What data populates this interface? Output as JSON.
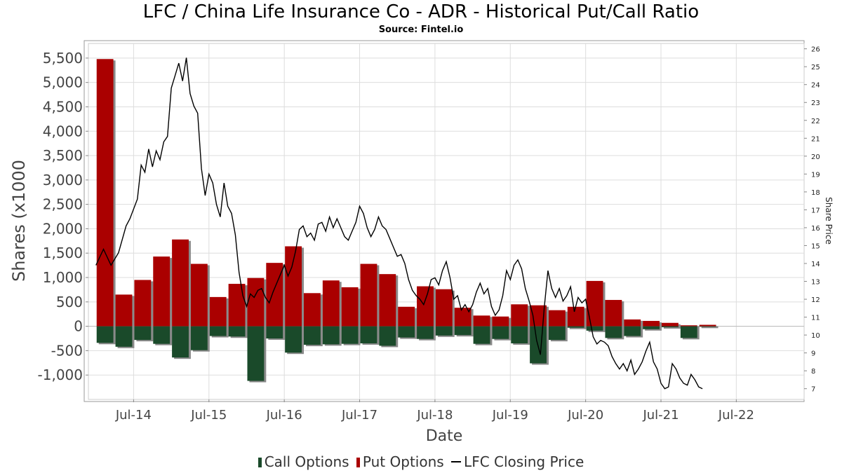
{
  "chart_data": {
    "type": "bar",
    "title": "LFC / China Life Insurance Co - ADR - Historical Put/Call Ratio",
    "subtitle": "Source: Fintel.io",
    "xlabel": "Date",
    "ylabel": "Shares (x1000",
    "y2label": "Share Price",
    "ylim": [
      -1500,
      5800
    ],
    "y2lim": [
      6.4,
      26.3
    ],
    "yticks": [
      "5,500",
      "5,000",
      "4,500",
      "4,000",
      "3,500",
      "3,000",
      "2,500",
      "2,000",
      "1,500",
      "1,000",
      "500",
      "0",
      "-500",
      "-1,000"
    ],
    "ytick_values": [
      5500,
      5000,
      4500,
      4000,
      3500,
      3000,
      2500,
      2000,
      1500,
      1000,
      500,
      0,
      -500,
      -1000
    ],
    "y2ticks": [
      "26",
      "25",
      "24",
      "23",
      "22",
      "21",
      "20",
      "19",
      "18",
      "17",
      "16",
      "15",
      "14",
      "13",
      "12",
      "11",
      "10",
      "9",
      "8",
      "7"
    ],
    "xlim": [
      2013.9,
      2023.4
    ],
    "xticks": [
      {
        "label": "Jul-14",
        "x": 2014.5
      },
      {
        "label": "Jul-15",
        "x": 2015.5
      },
      {
        "label": "Jul-16",
        "x": 2016.5
      },
      {
        "label": "Jul-17",
        "x": 2017.5
      },
      {
        "label": "Jul-18",
        "x": 2018.5
      },
      {
        "label": "Jul-19",
        "x": 2019.5
      },
      {
        "label": "Jul-20",
        "x": 2020.5
      },
      {
        "label": "Jul-21",
        "x": 2021.5
      },
      {
        "label": "Jul-22",
        "x": 2022.5
      }
    ],
    "grid": true,
    "legend_position": "bottom",
    "periods": [
      {
        "start": 2014.0,
        "put": 5480,
        "call": -340
      },
      {
        "start": 2014.25,
        "put": 650,
        "call": -420
      },
      {
        "start": 2014.5,
        "put": 950,
        "call": -280
      },
      {
        "start": 2014.75,
        "put": 1430,
        "call": -360
      },
      {
        "start": 2015.0,
        "put": 1780,
        "call": -640
      },
      {
        "start": 2015.25,
        "put": 1280,
        "call": -490
      },
      {
        "start": 2015.5,
        "put": 600,
        "call": -200
      },
      {
        "start": 2015.75,
        "put": 870,
        "call": -210
      },
      {
        "start": 2016.0,
        "put": 990,
        "call": -1120
      },
      {
        "start": 2016.25,
        "put": 1300,
        "call": -250
      },
      {
        "start": 2016.5,
        "put": 1640,
        "call": -540
      },
      {
        "start": 2016.75,
        "put": 680,
        "call": -380
      },
      {
        "start": 2017.0,
        "put": 940,
        "call": -370
      },
      {
        "start": 2017.25,
        "put": 800,
        "call": -360
      },
      {
        "start": 2017.5,
        "put": 1280,
        "call": -350
      },
      {
        "start": 2017.75,
        "put": 1070,
        "call": -400
      },
      {
        "start": 2018.0,
        "put": 400,
        "call": -230
      },
      {
        "start": 2018.25,
        "put": 820,
        "call": -260
      },
      {
        "start": 2018.5,
        "put": 760,
        "call": -190
      },
      {
        "start": 2018.75,
        "put": 380,
        "call": -180
      },
      {
        "start": 2019.0,
        "put": 220,
        "call": -360
      },
      {
        "start": 2019.25,
        "put": 200,
        "call": -260
      },
      {
        "start": 2019.5,
        "put": 450,
        "call": -350
      },
      {
        "start": 2019.75,
        "put": 430,
        "call": -760
      },
      {
        "start": 2020.0,
        "put": 330,
        "call": -280
      },
      {
        "start": 2020.25,
        "put": 400,
        "call": -30
      },
      {
        "start": 2020.5,
        "put": 930,
        "call": -90
      },
      {
        "start": 2020.75,
        "put": 540,
        "call": -240
      },
      {
        "start": 2021.0,
        "put": 140,
        "call": -200
      },
      {
        "start": 2021.25,
        "put": 110,
        "call": -60
      },
      {
        "start": 2021.5,
        "put": 70,
        "call": -20
      },
      {
        "start": 2021.75,
        "put": 20,
        "call": -240
      },
      {
        "start": 2022.0,
        "put": 30,
        "call": -10
      }
    ],
    "price": [
      [
        2014.0,
        13.9
      ],
      [
        2014.1,
        14.8
      ],
      [
        2014.2,
        13.9
      ],
      [
        2014.3,
        14.6
      ],
      [
        2014.4,
        16.1
      ],
      [
        2014.45,
        16.5
      ],
      [
        2014.55,
        17.6
      ],
      [
        2014.6,
        19.5
      ],
      [
        2014.65,
        19.1
      ],
      [
        2014.7,
        20.4
      ],
      [
        2014.75,
        19.4
      ],
      [
        2014.8,
        20.3
      ],
      [
        2014.85,
        19.8
      ],
      [
        2014.9,
        20.8
      ],
      [
        2014.95,
        21.1
      ],
      [
        2015.0,
        23.8
      ],
      [
        2015.05,
        24.5
      ],
      [
        2015.1,
        25.2
      ],
      [
        2015.15,
        24.2
      ],
      [
        2015.2,
        25.5
      ],
      [
        2015.25,
        23.5
      ],
      [
        2015.3,
        22.8
      ],
      [
        2015.35,
        22.4
      ],
      [
        2015.4,
        19.3
      ],
      [
        2015.45,
        17.8
      ],
      [
        2015.5,
        19.0
      ],
      [
        2015.55,
        18.5
      ],
      [
        2015.6,
        17.3
      ],
      [
        2015.65,
        16.6
      ],
      [
        2015.7,
        18.5
      ],
      [
        2015.75,
        17.2
      ],
      [
        2015.8,
        16.8
      ],
      [
        2015.85,
        15.6
      ],
      [
        2015.9,
        13.5
      ],
      [
        2015.95,
        12.2
      ],
      [
        2016.0,
        11.6
      ],
      [
        2016.05,
        12.3
      ],
      [
        2016.1,
        12.1
      ],
      [
        2016.15,
        12.5
      ],
      [
        2016.2,
        12.6
      ],
      [
        2016.25,
        12.1
      ],
      [
        2016.3,
        11.8
      ],
      [
        2016.35,
        12.4
      ],
      [
        2016.4,
        12.9
      ],
      [
        2016.45,
        13.4
      ],
      [
        2016.5,
        13.9
      ],
      [
        2016.55,
        13.3
      ],
      [
        2016.6,
        13.8
      ],
      [
        2016.65,
        14.7
      ],
      [
        2016.7,
        15.9
      ],
      [
        2016.75,
        16.1
      ],
      [
        2016.8,
        15.5
      ],
      [
        2016.85,
        15.7
      ],
      [
        2016.9,
        15.3
      ],
      [
        2016.95,
        16.2
      ],
      [
        2017.0,
        16.3
      ],
      [
        2017.05,
        15.8
      ],
      [
        2017.1,
        16.6
      ],
      [
        2017.15,
        16.0
      ],
      [
        2017.2,
        16.5
      ],
      [
        2017.25,
        16.0
      ],
      [
        2017.3,
        15.5
      ],
      [
        2017.35,
        15.3
      ],
      [
        2017.4,
        15.8
      ],
      [
        2017.45,
        16.3
      ],
      [
        2017.5,
        17.2
      ],
      [
        2017.55,
        16.8
      ],
      [
        2017.6,
        16.0
      ],
      [
        2017.65,
        15.5
      ],
      [
        2017.7,
        15.9
      ],
      [
        2017.75,
        16.6
      ],
      [
        2017.8,
        16.1
      ],
      [
        2017.85,
        15.9
      ],
      [
        2017.9,
        15.4
      ],
      [
        2017.95,
        14.9
      ],
      [
        2018.0,
        14.4
      ],
      [
        2018.05,
        14.5
      ],
      [
        2018.1,
        14.0
      ],
      [
        2018.15,
        13.1
      ],
      [
        2018.2,
        12.5
      ],
      [
        2018.25,
        12.2
      ],
      [
        2018.3,
        12.0
      ],
      [
        2018.35,
        11.7
      ],
      [
        2018.4,
        12.3
      ],
      [
        2018.45,
        13.1
      ],
      [
        2018.5,
        13.2
      ],
      [
        2018.55,
        12.8
      ],
      [
        2018.6,
        13.6
      ],
      [
        2018.65,
        14.1
      ],
      [
        2018.7,
        13.2
      ],
      [
        2018.75,
        12.0
      ],
      [
        2018.8,
        12.2
      ],
      [
        2018.85,
        11.4
      ],
      [
        2018.9,
        11.7
      ],
      [
        2018.95,
        11.3
      ],
      [
        2019.0,
        11.7
      ],
      [
        2019.05,
        12.4
      ],
      [
        2019.1,
        12.9
      ],
      [
        2019.15,
        12.3
      ],
      [
        2019.2,
        12.6
      ],
      [
        2019.25,
        11.6
      ],
      [
        2019.3,
        11.1
      ],
      [
        2019.35,
        11.4
      ],
      [
        2019.4,
        12.2
      ],
      [
        2019.45,
        13.6
      ],
      [
        2019.5,
        13.1
      ],
      [
        2019.55,
        13.9
      ],
      [
        2019.6,
        14.2
      ],
      [
        2019.65,
        13.7
      ],
      [
        2019.7,
        12.6
      ],
      [
        2019.75,
        11.9
      ],
      [
        2019.8,
        11.1
      ],
      [
        2019.85,
        9.7
      ],
      [
        2019.9,
        8.9
      ],
      [
        2019.95,
        11.5
      ],
      [
        2020.0,
        13.6
      ],
      [
        2020.05,
        12.6
      ],
      [
        2020.1,
        12.1
      ],
      [
        2020.15,
        12.6
      ],
      [
        2020.2,
        11.9
      ],
      [
        2020.25,
        12.2
      ],
      [
        2020.3,
        12.7
      ],
      [
        2020.35,
        11.3
      ],
      [
        2020.4,
        12.1
      ],
      [
        2020.45,
        11.8
      ],
      [
        2020.5,
        12.0
      ],
      [
        2020.55,
        11.0
      ],
      [
        2020.6,
        9.9
      ],
      [
        2020.65,
        9.5
      ],
      [
        2020.7,
        9.7
      ],
      [
        2020.75,
        9.6
      ],
      [
        2020.8,
        9.4
      ],
      [
        2020.85,
        8.8
      ],
      [
        2020.9,
        8.4
      ],
      [
        2020.95,
        8.1
      ],
      [
        2021.0,
        8.4
      ],
      [
        2021.05,
        8.0
      ],
      [
        2021.1,
        8.6
      ],
      [
        2021.15,
        7.8
      ],
      [
        2021.2,
        8.1
      ],
      [
        2021.25,
        8.5
      ],
      [
        2021.3,
        9.1
      ],
      [
        2021.35,
        9.6
      ],
      [
        2021.4,
        8.5
      ],
      [
        2021.45,
        8.1
      ],
      [
        2021.5,
        7.3
      ],
      [
        2021.55,
        7.0
      ],
      [
        2021.6,
        7.1
      ],
      [
        2021.65,
        8.4
      ],
      [
        2021.7,
        8.1
      ],
      [
        2021.75,
        7.6
      ],
      [
        2021.8,
        7.3
      ],
      [
        2021.85,
        7.2
      ],
      [
        2021.9,
        7.8
      ],
      [
        2021.95,
        7.5
      ],
      [
        2022.0,
        7.1
      ],
      [
        2022.05,
        7.0
      ]
    ],
    "legend": [
      {
        "label": "Call Options",
        "color": "#1a4a2a"
      },
      {
        "label": "Put Options",
        "color": "#aa0000"
      },
      {
        "label": "LFC Closing Price",
        "color": "#000000"
      }
    ]
  }
}
